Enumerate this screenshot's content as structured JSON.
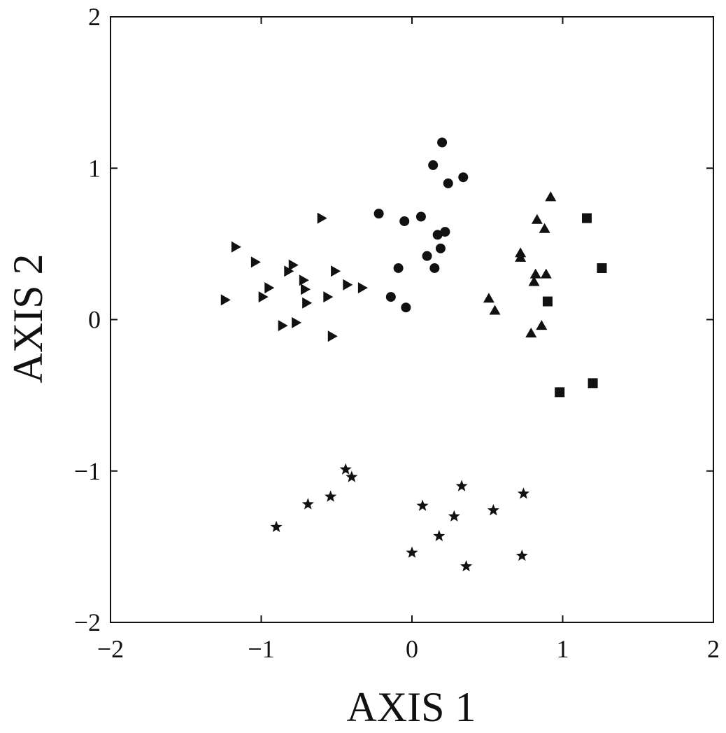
{
  "chart_data": {
    "type": "scatter",
    "title": "",
    "xlabel": "AXIS 1",
    "ylabel": "AXIS 2",
    "xlim": [
      -2,
      2
    ],
    "ylim": [
      -2,
      2
    ],
    "xticks": [
      -2,
      -1,
      0,
      1,
      2
    ],
    "yticks": [
      -2,
      -1,
      0,
      1,
      2
    ],
    "xtick_labels": [
      "−2",
      "−1",
      "0",
      "1",
      "2"
    ],
    "ytick_labels": [
      "−2",
      "−1",
      "0",
      "1",
      "2"
    ],
    "grid": false,
    "legend": false,
    "marker_color": "#111111",
    "series": [
      {
        "marker": "triangle-right",
        "points": [
          [
            -1.24,
            0.13
          ],
          [
            -1.17,
            0.48
          ],
          [
            -1.04,
            0.38
          ],
          [
            -0.99,
            0.15
          ],
          [
            -0.95,
            0.21
          ],
          [
            -0.86,
            -0.04
          ],
          [
            -0.82,
            0.32
          ],
          [
            -0.79,
            0.36
          ],
          [
            -0.77,
            -0.02
          ],
          [
            -0.72,
            0.26
          ],
          [
            -0.71,
            0.2
          ],
          [
            -0.7,
            0.11
          ],
          [
            -0.6,
            0.67
          ],
          [
            -0.56,
            0.15
          ],
          [
            -0.53,
            -0.11
          ],
          [
            -0.51,
            0.32
          ],
          [
            -0.43,
            0.23
          ],
          [
            -0.33,
            0.21
          ]
        ]
      },
      {
        "marker": "circle",
        "points": [
          [
            -0.22,
            0.7
          ],
          [
            -0.14,
            0.15
          ],
          [
            -0.09,
            0.34
          ],
          [
            -0.05,
            0.65
          ],
          [
            -0.04,
            0.08
          ],
          [
            0.06,
            0.68
          ],
          [
            0.1,
            0.42
          ],
          [
            0.14,
            1.02
          ],
          [
            0.15,
            0.34
          ],
          [
            0.17,
            0.56
          ],
          [
            0.19,
            0.47
          ],
          [
            0.2,
            1.17
          ],
          [
            0.22,
            0.58
          ],
          [
            0.24,
            0.9
          ],
          [
            0.34,
            0.94
          ]
        ]
      },
      {
        "marker": "triangle-up",
        "points": [
          [
            0.51,
            0.14
          ],
          [
            0.55,
            0.06
          ],
          [
            0.72,
            0.41
          ],
          [
            0.72,
            0.44
          ],
          [
            0.79,
            -0.09
          ],
          [
            0.81,
            0.25
          ],
          [
            0.82,
            0.3
          ],
          [
            0.83,
            0.66
          ],
          [
            0.86,
            -0.04
          ],
          [
            0.88,
            0.6
          ],
          [
            0.89,
            0.3
          ],
          [
            0.92,
            0.81
          ]
        ]
      },
      {
        "marker": "square",
        "points": [
          [
            0.98,
            -0.48
          ],
          [
            0.9,
            0.12
          ],
          [
            1.16,
            0.67
          ],
          [
            1.2,
            -0.42
          ],
          [
            1.26,
            0.34
          ]
        ]
      },
      {
        "marker": "star",
        "points": [
          [
            -0.9,
            -1.37
          ],
          [
            -0.69,
            -1.22
          ],
          [
            -0.54,
            -1.17
          ],
          [
            -0.44,
            -0.99
          ],
          [
            -0.4,
            -1.04
          ],
          [
            0.0,
            -1.54
          ],
          [
            0.07,
            -1.23
          ],
          [
            0.18,
            -1.43
          ],
          [
            0.28,
            -1.3
          ],
          [
            0.33,
            -1.1
          ],
          [
            0.36,
            -1.63
          ],
          [
            0.54,
            -1.26
          ],
          [
            0.73,
            -1.56
          ],
          [
            0.74,
            -1.15
          ]
        ]
      }
    ]
  }
}
